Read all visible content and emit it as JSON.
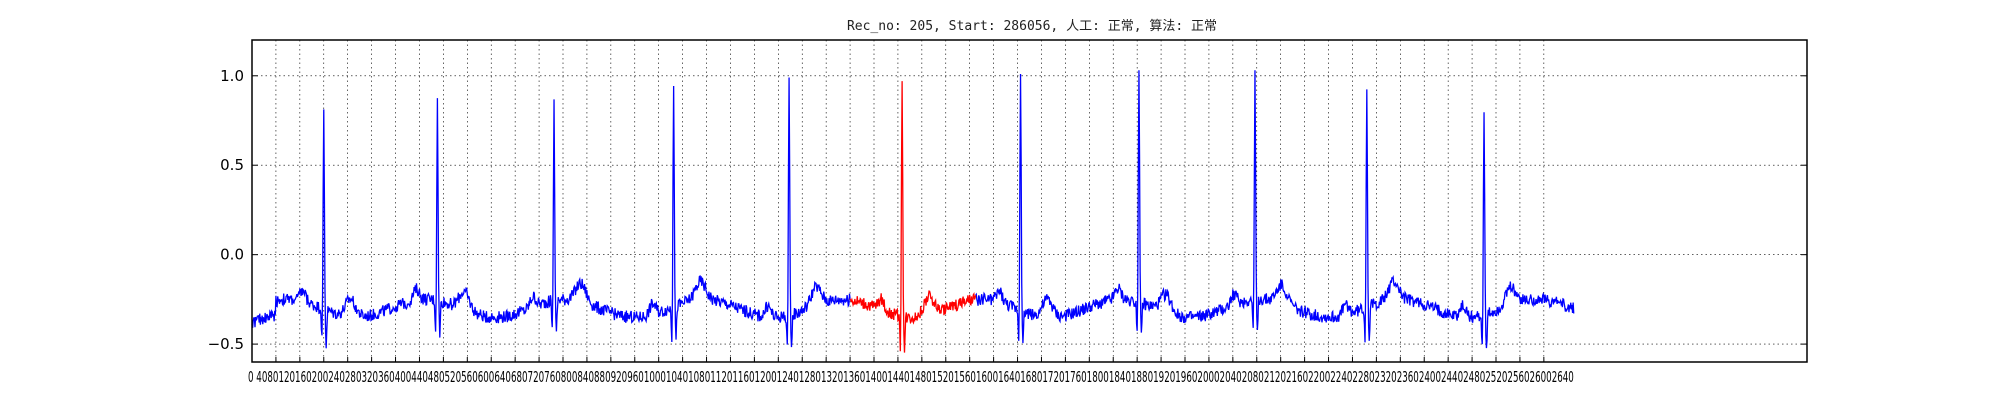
{
  "chart_data": {
    "type": "line",
    "title": "Rec_no: 205, Start: 286056, 人工: 正常, 算法: 正常",
    "xlabel": "",
    "ylabel": "",
    "xlim": [
      0,
      2600
    ],
    "ylim": [
      -0.6,
      1.2
    ],
    "grid": true,
    "yticks": [
      -0.5,
      0.0,
      0.5,
      1.0
    ],
    "ytick_labels": [
      "−0.5",
      "0.0",
      "0.5",
      "1.0"
    ],
    "xtick_start": 0,
    "xtick_step": 40,
    "xtick_count": 55,
    "xtick_label_text": "0 4080120160200240280320360400440480520560600640680720760800840880920960100010401080112011601200124012801320136014001440148015201560160016401680172017601800184018801920196020002040208021202160220022402280232023602400244024802520256026002640",
    "series": [
      {
        "name": "",
        "color": "#0000ff",
        "beat_peaks_x": [
          120,
          310,
          505,
          705,
          898,
          1285,
          1483,
          1677,
          1864,
          2060
        ],
        "beat_peaks_y": [
          0.76,
          0.76,
          0.75,
          0.9,
          0.95,
          1.0,
          0.98,
          0.93,
          0.9,
          0.81
        ],
        "segments": [
          [
            0,
            1000
          ],
          [
            1210,
            2210
          ]
        ]
      },
      {
        "name": "",
        "color": "#ff0000",
        "beat_peaks_x": [
          1087
        ],
        "beat_peaks_y": [
          1.0
        ],
        "segments": [
          [
            1000,
            1210
          ]
        ]
      }
    ],
    "baseline_y": -0.3,
    "data_x_end": 2210
  }
}
